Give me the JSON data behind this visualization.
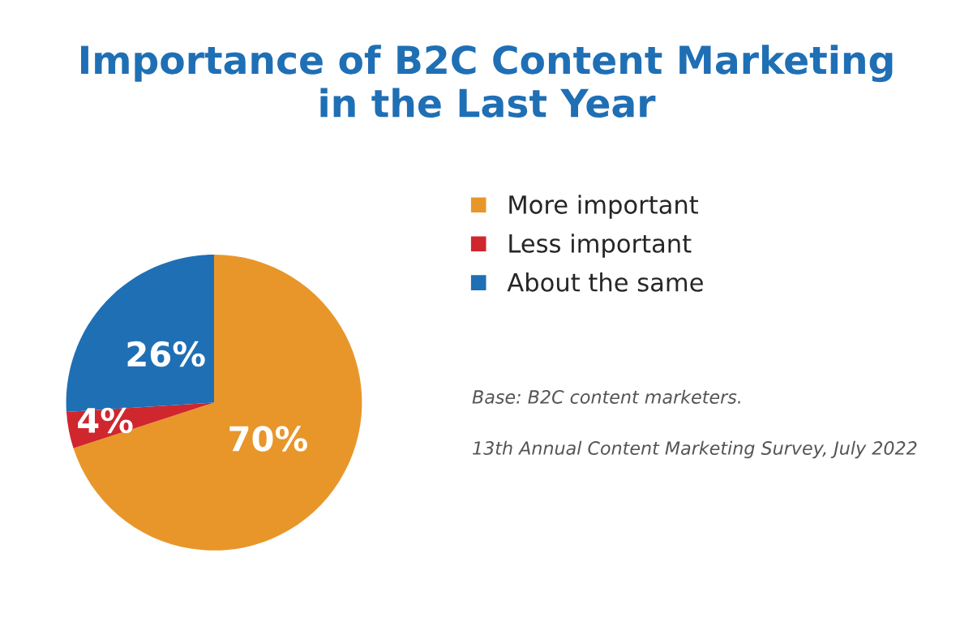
{
  "chart_data": {
    "type": "pie",
    "title": "Importance of B2C Content Marketing\nin the Last Year",
    "categories": [
      "More important",
      "Less important",
      "About the same"
    ],
    "values": [
      70,
      4,
      26
    ],
    "colors": [
      "#e8962a",
      "#d0262e",
      "#1f6fb5"
    ],
    "value_labels": [
      "70%",
      "4%",
      "26%"
    ],
    "legend": "right",
    "annotations": [
      "Base: B2C content marketers.",
      "13th Annual Content Marketing Survey, July 2022"
    ]
  }
}
